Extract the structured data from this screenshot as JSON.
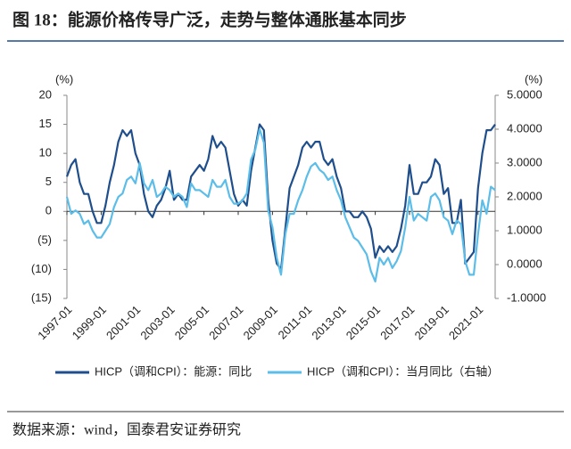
{
  "chart_data": {
    "type": "line",
    "title": "图 18：能源价格传导广泛，走势与整体通胀基本同步",
    "source": "数据来源：wind，国泰君安证券研究",
    "y_label": "(%)",
    "y2_label": "(%)",
    "categories": [
      "1997-01",
      null,
      null,
      null,
      null,
      null,
      null,
      null,
      "1999-01",
      null,
      null,
      null,
      null,
      null,
      null,
      null,
      "2001-01",
      null,
      null,
      null,
      null,
      null,
      null,
      null,
      "2003-01",
      null,
      null,
      null,
      null,
      null,
      null,
      null,
      "2005-01",
      null,
      null,
      null,
      null,
      null,
      null,
      null,
      "2007-01",
      null,
      null,
      null,
      null,
      null,
      null,
      null,
      "2009-01",
      null,
      null,
      null,
      null,
      null,
      null,
      null,
      "2011-01",
      null,
      null,
      null,
      null,
      null,
      null,
      null,
      "2013-01",
      null,
      null,
      null,
      null,
      null,
      null,
      null,
      "2015-01",
      null,
      null,
      null,
      null,
      null,
      null,
      null,
      "2017-01",
      null,
      null,
      null,
      null,
      null,
      null,
      null,
      "2019-01",
      null,
      null,
      null,
      null,
      null,
      null,
      null,
      "2021-01",
      null,
      null,
      null,
      null
    ],
    "series": [
      {
        "name": "HICP（调和CPI）：能源：同比",
        "color": "#1f4e8c",
        "axis": "y",
        "values": [
          6,
          8,
          9,
          5,
          3,
          3,
          0,
          -2,
          -2,
          1,
          5,
          8,
          12,
          14,
          13,
          14,
          10,
          8,
          3,
          0,
          -1,
          1,
          2,
          4,
          7,
          2,
          3,
          2,
          2,
          6,
          7,
          8,
          7,
          9,
          13,
          11,
          12,
          11,
          7,
          3,
          1,
          2,
          1,
          7,
          11,
          15,
          14,
          2,
          -5,
          -9,
          -10,
          -3,
          4,
          6,
          8,
          11,
          12,
          11,
          12,
          12,
          9,
          8,
          9,
          6,
          4,
          0,
          0,
          -1,
          -1,
          0,
          -1,
          -3,
          -8,
          -6,
          -7,
          -6,
          -7,
          -6,
          -3,
          1,
          8,
          3,
          3,
          5,
          5,
          6,
          9,
          8,
          3,
          4,
          -2,
          -2,
          2,
          -9,
          -8,
          -7,
          4,
          10,
          14,
          14,
          15
        ]
      },
      {
        "name": "HICP（调和CPI）：当月同比（右轴）",
        "color": "#5bbde8",
        "axis": "y2",
        "values": [
          2.0,
          1.5,
          1.6,
          1.5,
          1.2,
          1.3,
          1.0,
          0.8,
          0.8,
          1.0,
          1.2,
          1.7,
          2.0,
          2.1,
          2.5,
          2.6,
          2.4,
          3.0,
          2.4,
          2.2,
          2.5,
          2.0,
          2.1,
          2.3,
          2.2,
          2.0,
          2.1,
          2.0,
          1.7,
          2.4,
          2.2,
          2.2,
          2.1,
          2.0,
          2.5,
          2.3,
          2.3,
          2.5,
          2.0,
          1.8,
          1.8,
          1.9,
          2.1,
          3.1,
          3.4,
          4.0,
          3.6,
          1.6,
          1.1,
          0.2,
          -0.3,
          0.9,
          1.5,
          1.5,
          1.9,
          2.2,
          2.6,
          2.9,
          3.0,
          2.8,
          2.7,
          2.5,
          2.6,
          2.2,
          1.9,
          1.4,
          1.1,
          0.8,
          0.7,
          0.5,
          0.3,
          -0.2,
          -0.5,
          0.2,
          0.0,
          0.2,
          -0.1,
          0.1,
          0.4,
          1.1,
          2.0,
          1.3,
          1.5,
          1.4,
          1.3,
          2.0,
          2.1,
          1.9,
          1.4,
          1.3,
          0.9,
          1.3,
          1.2,
          0.1,
          -0.3,
          -0.3,
          0.9,
          1.9,
          1.5,
          2.3,
          2.2
        ]
      }
    ],
    "ylim": [
      -15,
      20
    ],
    "yticks": [
      20,
      15,
      10,
      5,
      0,
      {
        "value": -5,
        "label": "(5)"
      },
      {
        "value": -10,
        "label": "(10)"
      },
      {
        "value": -15,
        "label": "(15)"
      }
    ],
    "y2lim": [
      -1,
      5
    ],
    "y2ticks": [
      {
        "value": 5,
        "label": "5.0000"
      },
      {
        "value": 4,
        "label": "4.0000"
      },
      {
        "value": 3,
        "label": "3.0000"
      },
      {
        "value": 2,
        "label": "2.0000"
      },
      {
        "value": 1,
        "label": "1.0000"
      },
      {
        "value": 0,
        "label": "0.0000"
      },
      {
        "value": -1,
        "label": "-1.0000"
      }
    ]
  }
}
